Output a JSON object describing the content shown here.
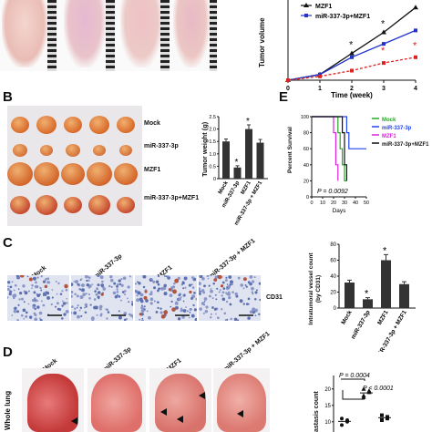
{
  "panels": {
    "b": "B",
    "c": "C",
    "d": "D",
    "e": "E"
  },
  "panel_a": {
    "legend": [
      "MZF1",
      "miR-337-3p+MZF1"
    ],
    "xlabel": "Time (week)",
    "ylabel": "Tumor volume",
    "xticks": [
      "0",
      "1",
      "2",
      "3",
      "4"
    ],
    "star": "*",
    "colors": {
      "mzf1": "#111111",
      "combo": "#2233cc",
      "red": "#dd2222"
    }
  },
  "panel_b": {
    "rows": [
      "Mock",
      "miR-337-3p",
      "MZF1",
      "miR-337-3p+MZF1"
    ],
    "ylabel": "Tumor weight (g)",
    "yticks": [
      "0",
      "0.5",
      "1.0",
      "1.5",
      "2.0",
      "2.5"
    ],
    "xcats": [
      "Mock",
      "miR-337-3p",
      "MZF1",
      "miR-337-3p + MZF1"
    ],
    "star": "*"
  },
  "panel_e": {
    "legend": [
      "Mock",
      "miR-337-3p",
      "MZF1",
      "miR-337-3p+MZF1"
    ],
    "legend_colors": [
      "#22aa22",
      "#2244ee",
      "#dd22dd",
      "#111111"
    ],
    "ylabel": "Percent Survival",
    "yticks": [
      "0",
      "20",
      "40",
      "60",
      "80",
      "100"
    ],
    "xticks": [
      "0",
      "10",
      "20",
      "30",
      "40",
      "50"
    ],
    "xlabel": "Days",
    "pvalue": "P = 0.0092"
  },
  "panel_c": {
    "cols": [
      "Mock",
      "miR-337-3p",
      "MZF1",
      "miR-337-3p + MZF1"
    ],
    "stain": "CD31",
    "ylabel": "Intratumoral vessel count (by CD31)",
    "yticks": [
      "0",
      "20",
      "40",
      "60",
      "80"
    ],
    "xcats": [
      "Mock",
      "miR-337-3p",
      "MZF1",
      "miR-337-3p + MZF1"
    ],
    "star": "*"
  },
  "panel_d": {
    "cols": [
      "Mock",
      "miR-337-3p",
      "MZF1",
      "miR-337-3p + MZF1"
    ],
    "rowlabel": "Whole lung",
    "ylabel": "astasis count",
    "yticks": [
      "10",
      "15",
      "20"
    ],
    "p1": "P = 0.0004",
    "p2": "P < 0.0001"
  },
  "chart_data": [
    {
      "type": "line",
      "panel": "A",
      "xlabel": "Time (week)",
      "ylabel": "Tumor volume",
      "x": [
        0,
        1,
        2,
        3,
        4
      ],
      "series": [
        {
          "name": "MZF1",
          "values": [
            0,
            0.3,
            1.4,
            2.5,
            3.8
          ]
        },
        {
          "name": "miR-337-3p+MZF1",
          "values": [
            0,
            0.3,
            1.2,
            1.9,
            2.6
          ]
        },
        {
          "values": [
            0,
            0.2,
            0.5,
            0.9,
            1.2
          ]
        }
      ]
    },
    {
      "type": "bar",
      "panel": "B",
      "ylabel": "Tumor weight (g)",
      "categories": [
        "Mock",
        "miR-337-3p",
        "MZF1",
        "miR-337-3p + MZF1"
      ],
      "values": [
        1.5,
        0.45,
        2.0,
        1.45
      ],
      "errors": [
        0.1,
        0.07,
        0.17,
        0.13
      ],
      "ylim": [
        0,
        2.5
      ]
    },
    {
      "type": "line",
      "panel": "E",
      "xlabel": "Days",
      "ylabel": "Percent Survival",
      "xlim": [
        0,
        50
      ],
      "ylim": [
        0,
        100
      ],
      "series": [
        {
          "name": "Mock",
          "x": [
            0,
            22,
            24,
            26,
            28,
            30,
            32
          ],
          "y": [
            100,
            100,
            80,
            60,
            40,
            20,
            20
          ]
        },
        {
          "name": "miR-337-3p",
          "x": [
            0,
            30,
            32,
            34,
            50
          ],
          "y": [
            100,
            100,
            80,
            60,
            60
          ]
        },
        {
          "name": "MZF1",
          "x": [
            0,
            18,
            20,
            22,
            24
          ],
          "y": [
            100,
            100,
            80,
            40,
            20
          ]
        },
        {
          "name": "miR-337-3p+MZF1",
          "x": [
            0,
            26,
            28,
            30,
            32
          ],
          "y": [
            100,
            100,
            80,
            40,
            20
          ]
        }
      ]
    },
    {
      "type": "bar",
      "panel": "C",
      "ylabel": "Intratumoral vessel count (by CD31)",
      "categories": [
        "Mock",
        "miR-337-3p",
        "MZF1",
        "miR-337-3p + MZF1"
      ],
      "values": [
        32,
        11,
        60,
        30
      ],
      "errors": [
        3,
        2,
        7,
        3
      ],
      "ylim": [
        0,
        80
      ]
    },
    {
      "type": "scatter",
      "panel": "D",
      "ylabel": "astasis count",
      "groups": [
        {
          "values": [
            9,
            10,
            11,
            10.5
          ]
        },
        {
          "values": [
            18,
            19,
            20,
            19.5,
            17.5
          ]
        },
        {
          "values": [
            10.5,
            11,
            12,
            11.5
          ]
        }
      ]
    }
  ]
}
